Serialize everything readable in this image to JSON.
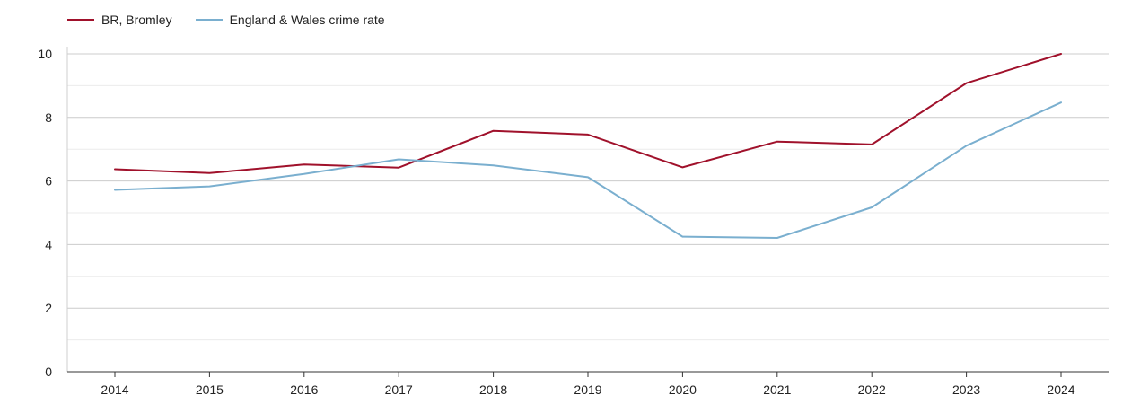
{
  "chart_data": {
    "type": "line",
    "title": "",
    "xlabel": "",
    "ylabel": "",
    "x": [
      2014,
      2015,
      2016,
      2017,
      2018,
      2019,
      2020,
      2021,
      2022,
      2023,
      2024
    ],
    "ylim": [
      0,
      10
    ],
    "yticks": [
      0,
      2,
      4,
      6,
      8,
      10
    ],
    "grid": true,
    "legend_position": "top-left",
    "series": [
      {
        "name": "BR, Bromley",
        "color": "#a0112b",
        "values": [
          6.37,
          6.25,
          6.52,
          6.42,
          7.58,
          7.46,
          6.43,
          7.24,
          7.15,
          9.08,
          10.0
        ]
      },
      {
        "name": "England & Wales crime rate",
        "color": "#7aafcf",
        "values": [
          5.72,
          5.83,
          6.22,
          6.68,
          6.49,
          6.12,
          4.25,
          4.21,
          5.17,
          7.11,
          8.47
        ]
      }
    ]
  }
}
